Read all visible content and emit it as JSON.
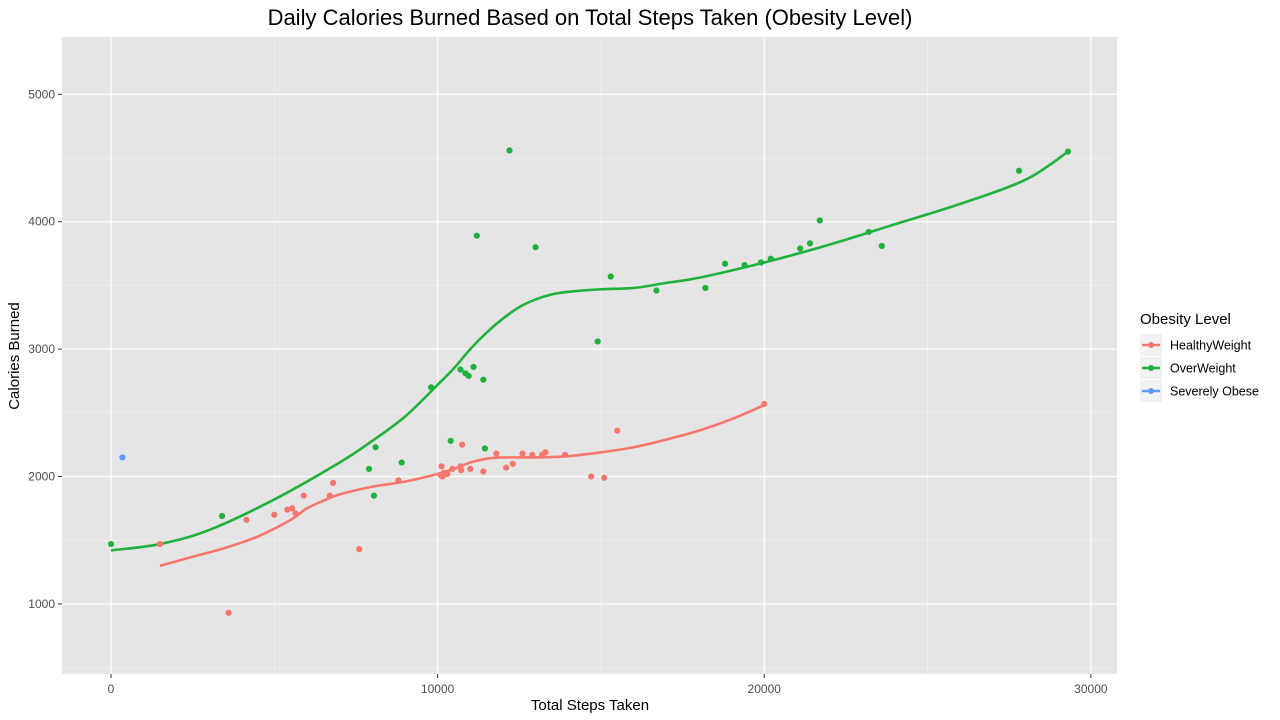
{
  "chart_data": {
    "type": "scatter",
    "title": "Daily Calories Burned Based on Total Steps Taken (Obesity Level)",
    "xlabel": "Total Steps Taken",
    "ylabel": "Calories Burned",
    "xlim": [
      -1500,
      30800
    ],
    "ylim": [
      450,
      5450
    ],
    "x_ticks": [
      0,
      10000,
      20000,
      30000
    ],
    "x_tick_labels": [
      "0",
      "10000",
      "20000",
      "30000"
    ],
    "y_ticks": [
      1000,
      2000,
      3000,
      4000,
      5000
    ],
    "y_tick_labels": [
      "1000",
      "2000",
      "3000",
      "4000",
      "5000"
    ],
    "grid": true,
    "legend_title": "Obesity Level",
    "legend_position": "right",
    "background": "#e5e5e5",
    "series": [
      {
        "name": "HealthyWeight",
        "color": "#f8766d",
        "points": [
          [
            1500,
            1470
          ],
          [
            3600,
            930
          ],
          [
            4150,
            1660
          ],
          [
            5000,
            1700
          ],
          [
            5400,
            1740
          ],
          [
            5550,
            1750
          ],
          [
            5650,
            1710
          ],
          [
            5900,
            1850
          ],
          [
            6700,
            1850
          ],
          [
            6800,
            1950
          ],
          [
            7600,
            1430
          ],
          [
            8800,
            1970
          ],
          [
            10100,
            2010
          ],
          [
            10150,
            2000
          ],
          [
            10200,
            2030
          ],
          [
            10120,
            2080
          ],
          [
            10300,
            2020
          ],
          [
            10450,
            2060
          ],
          [
            10700,
            2080
          ],
          [
            10720,
            2050
          ],
          [
            10750,
            2250
          ],
          [
            11000,
            2060
          ],
          [
            11400,
            2040
          ],
          [
            11800,
            2180
          ],
          [
            12100,
            2070
          ],
          [
            12300,
            2100
          ],
          [
            12600,
            2180
          ],
          [
            12900,
            2170
          ],
          [
            13200,
            2170
          ],
          [
            13300,
            2190
          ],
          [
            13900,
            2170
          ],
          [
            14700,
            2000
          ],
          [
            15100,
            1990
          ],
          [
            15500,
            2360
          ],
          [
            20000,
            2570
          ]
        ],
        "trend": [
          [
            1500,
            1300
          ],
          [
            2500,
            1370
          ],
          [
            3500,
            1440
          ],
          [
            4500,
            1530
          ],
          [
            5500,
            1660
          ],
          [
            6000,
            1750
          ],
          [
            6500,
            1810
          ],
          [
            7000,
            1860
          ],
          [
            8000,
            1920
          ],
          [
            9000,
            1960
          ],
          [
            10000,
            2020
          ],
          [
            10500,
            2060
          ],
          [
            11000,
            2110
          ],
          [
            11500,
            2140
          ],
          [
            12000,
            2150
          ],
          [
            13000,
            2150
          ],
          [
            14000,
            2160
          ],
          [
            15000,
            2190
          ],
          [
            16000,
            2230
          ],
          [
            17000,
            2290
          ],
          [
            18000,
            2360
          ],
          [
            19000,
            2450
          ],
          [
            20000,
            2560
          ]
        ]
      },
      {
        "name": "OverWeight",
        "color": "#1fb13c",
        "points": [
          [
            0,
            1470
          ],
          [
            3400,
            1690
          ],
          [
            7900,
            2060
          ],
          [
            8050,
            1850
          ],
          [
            8100,
            2230
          ],
          [
            8900,
            2110
          ],
          [
            9800,
            2700
          ],
          [
            10400,
            2280
          ],
          [
            10700,
            2840
          ],
          [
            10850,
            2810
          ],
          [
            10950,
            2790
          ],
          [
            11100,
            2860
          ],
          [
            11200,
            3890
          ],
          [
            11400,
            2760
          ],
          [
            11450,
            2220
          ],
          [
            12200,
            4560
          ],
          [
            13000,
            3800
          ],
          [
            14900,
            3060
          ],
          [
            15300,
            3570
          ],
          [
            16700,
            3460
          ],
          [
            18200,
            3480
          ],
          [
            18800,
            3670
          ],
          [
            19400,
            3660
          ],
          [
            19900,
            3680
          ],
          [
            20200,
            3710
          ],
          [
            21100,
            3790
          ],
          [
            21400,
            3830
          ],
          [
            21700,
            4010
          ],
          [
            23200,
            3920
          ],
          [
            23600,
            3810
          ],
          [
            27800,
            4400
          ],
          [
            29300,
            4550
          ]
        ],
        "trend": [
          [
            0,
            1420
          ],
          [
            1500,
            1470
          ],
          [
            3000,
            1580
          ],
          [
            5000,
            1820
          ],
          [
            7000,
            2110
          ],
          [
            8000,
            2280
          ],
          [
            9000,
            2470
          ],
          [
            10000,
            2720
          ],
          [
            10500,
            2850
          ],
          [
            11000,
            3000
          ],
          [
            11500,
            3130
          ],
          [
            12000,
            3240
          ],
          [
            12500,
            3330
          ],
          [
            13000,
            3390
          ],
          [
            13500,
            3430
          ],
          [
            14000,
            3450
          ],
          [
            15000,
            3470
          ],
          [
            16000,
            3480
          ],
          [
            17000,
            3520
          ],
          [
            18000,
            3560
          ],
          [
            20000,
            3680
          ],
          [
            22000,
            3820
          ],
          [
            24000,
            3980
          ],
          [
            26000,
            4140
          ],
          [
            28000,
            4330
          ],
          [
            29300,
            4550
          ]
        ]
      },
      {
        "name": "Severely Obese",
        "color": "#609cff",
        "points": [
          [
            350,
            2150
          ]
        ],
        "trend": []
      }
    ]
  }
}
